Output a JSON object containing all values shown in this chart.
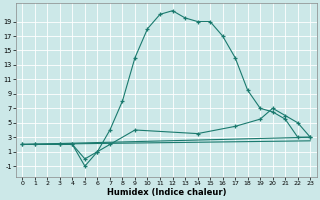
{
  "title": "",
  "xlabel": "Humidex (Indice chaleur)",
  "bg_color": "#cce8e8",
  "grid_color": "#ffffff",
  "line_color": "#1a7a6e",
  "xlim": [
    -0.5,
    23.5
  ],
  "ylim": [
    -2.5,
    21.5
  ],
  "xticks": [
    0,
    1,
    2,
    3,
    4,
    5,
    6,
    7,
    8,
    9,
    10,
    11,
    12,
    13,
    14,
    15,
    16,
    17,
    18,
    19,
    20,
    21,
    22,
    23
  ],
  "yticks": [
    -1,
    1,
    3,
    5,
    7,
    9,
    11,
    13,
    15,
    17,
    19
  ],
  "series": [
    {
      "x": [
        0,
        1,
        3,
        4,
        5,
        6,
        7,
        8,
        9,
        10,
        11,
        12,
        13,
        14,
        15,
        16,
        17,
        18,
        19,
        20,
        21,
        22,
        23
      ],
      "y": [
        2,
        2,
        2,
        2,
        -1,
        1,
        4,
        8,
        14,
        18,
        20,
        20.5,
        19.5,
        19,
        19,
        17,
        14,
        9.5,
        7,
        6.5,
        5.5,
        3,
        3
      ],
      "marker": true
    },
    {
      "x": [
        0,
        1,
        3,
        4,
        5,
        6,
        7,
        9,
        14,
        17,
        19,
        20,
        21,
        22,
        23
      ],
      "y": [
        2,
        2,
        2,
        2,
        0,
        1,
        2,
        4,
        3.5,
        4.5,
        5.5,
        7,
        6,
        5,
        3
      ],
      "marker": true
    },
    {
      "x": [
        0,
        23
      ],
      "y": [
        2,
        3
      ],
      "marker": false
    },
    {
      "x": [
        0,
        23
      ],
      "y": [
        2,
        2.5
      ],
      "marker": false
    }
  ]
}
